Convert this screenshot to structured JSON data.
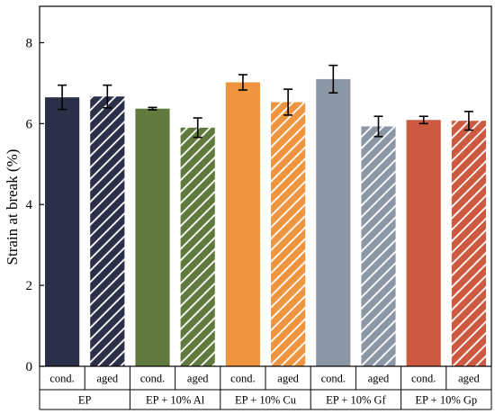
{
  "chart_data": {
    "type": "bar",
    "ylabel": "Strain at break (%)",
    "xlabel": "",
    "ylim": [
      0,
      8.9
    ],
    "yticks": [
      0,
      2,
      4,
      6,
      8
    ],
    "grid": false,
    "legend": "none",
    "groups": [
      {
        "name": "EP",
        "color": "#2c2f48",
        "bars": [
          {
            "label": "cond.",
            "value": 6.65,
            "error": 0.3,
            "hatched": false
          },
          {
            "label": "aged",
            "value": 6.67,
            "error": 0.28,
            "hatched": true
          }
        ]
      },
      {
        "name": "EP + 10% Al",
        "color": "#607a3e",
        "bars": [
          {
            "label": "cond.",
            "value": 6.37,
            "error": 0.03,
            "hatched": false
          },
          {
            "label": "aged",
            "value": 5.9,
            "error": 0.24,
            "hatched": true
          }
        ]
      },
      {
        "name": "EP + 10% Cu",
        "color": "#ef9540",
        "bars": [
          {
            "label": "cond.",
            "value": 7.02,
            "error": 0.19,
            "hatched": false
          },
          {
            "label": "aged",
            "value": 6.53,
            "error": 0.32,
            "hatched": true
          }
        ]
      },
      {
        "name": "EP + 10% Gf",
        "color": "#8c97a6",
        "bars": [
          {
            "label": "cond.",
            "value": 7.1,
            "error": 0.34,
            "hatched": false
          },
          {
            "label": "aged",
            "value": 5.93,
            "error": 0.25,
            "hatched": true
          }
        ]
      },
      {
        "name": "EP + 10% Gp",
        "color": "#cd5a40",
        "bars": [
          {
            "label": "cond.",
            "value": 6.09,
            "error": 0.09,
            "hatched": false
          },
          {
            "label": "aged",
            "value": 6.07,
            "error": 0.23,
            "hatched": true
          }
        ]
      }
    ]
  }
}
